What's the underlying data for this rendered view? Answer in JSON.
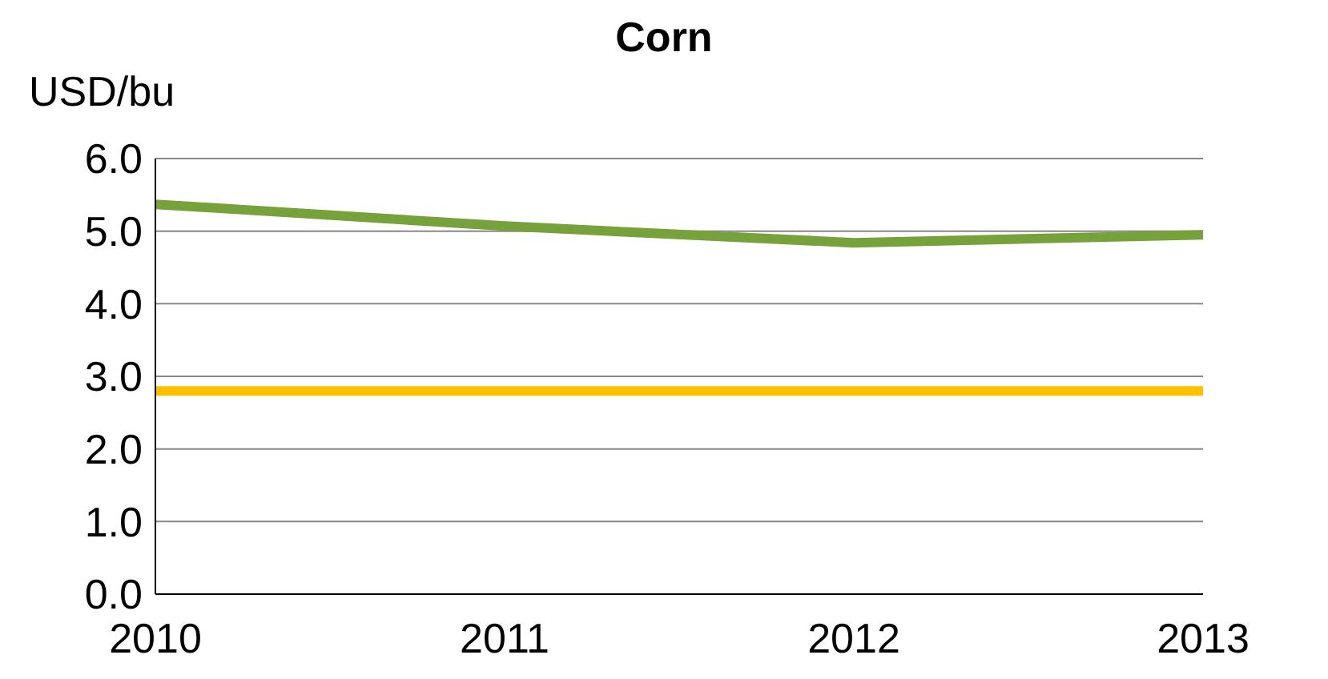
{
  "chart_data": {
    "type": "line",
    "title": "Corn",
    "ylabel": "USD/bu",
    "x": [
      2010,
      2011,
      2012,
      2013
    ],
    "series": [
      {
        "color": "#77a13a",
        "values": [
          5.37,
          5.07,
          4.84,
          4.95
        ]
      },
      {
        "color": "#ffc000",
        "values": [
          2.8,
          2.8,
          2.8,
          2.8
        ]
      }
    ],
    "xlim": [
      2010,
      2013
    ],
    "xticks": [
      2010,
      2011,
      2012,
      2013
    ],
    "ylim": [
      0,
      6
    ],
    "yticks": [
      {
        "value": 0,
        "label": "0.0"
      },
      {
        "value": 1,
        "label": "1.0"
      },
      {
        "value": 2,
        "label": "2.0"
      },
      {
        "value": 3,
        "label": "3.0"
      },
      {
        "value": 4,
        "label": "4.0"
      },
      {
        "value": 5,
        "label": "5.0"
      },
      {
        "value": 6,
        "label": "6.0"
      }
    ],
    "grid": "y",
    "marker": "none",
    "line_style": "solid"
  }
}
